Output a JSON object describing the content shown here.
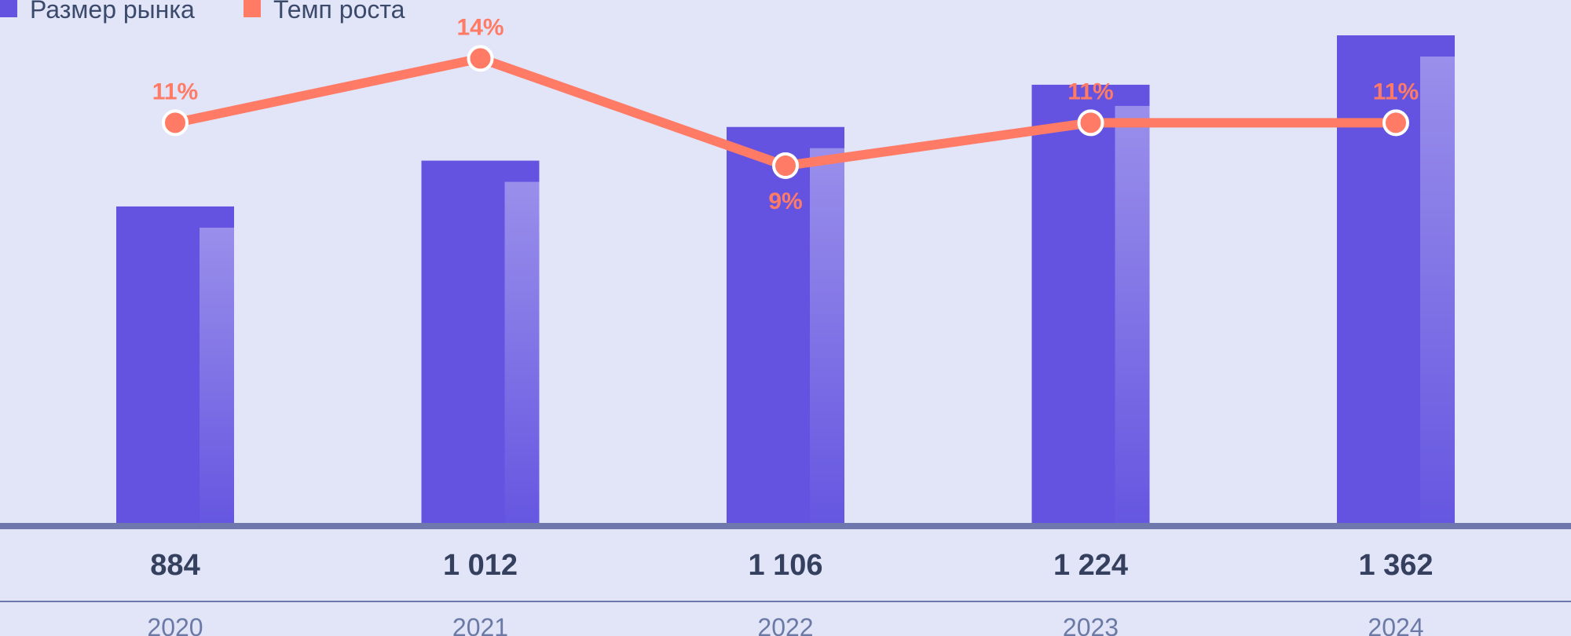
{
  "colors": {
    "background": "#e2e4f8",
    "bar": "#6353e0",
    "bar_highlight": "#9b90ee",
    "line": "#ff7b66",
    "baseline": "#6f78ad",
    "value_text": "#34405e",
    "year_text": "#6b7aa5",
    "legend_text": "#3b4a6b"
  },
  "legend": [
    {
      "label": "Размер рынка",
      "color": "#6353e0"
    },
    {
      "label": "Темп роста",
      "color": "#ff7b66"
    }
  ],
  "chart_data": {
    "type": "bar",
    "categories": [
      "2020",
      "2021",
      "2022",
      "2023",
      "2024"
    ],
    "series": [
      {
        "name": "Размер рынка",
        "type": "bar",
        "values": [
          884,
          1012,
          1106,
          1224,
          1362
        ],
        "labels": [
          "884",
          "1 012",
          "1 106",
          "1 224",
          "1 362"
        ]
      },
      {
        "name": "Темп роста",
        "type": "line",
        "values": [
          11,
          14,
          9,
          11,
          11
        ],
        "labels": [
          "11%",
          "14%",
          "9%",
          "11%",
          "11%"
        ],
        "label_position": [
          "above",
          "above",
          "below",
          "above",
          "above"
        ]
      }
    ],
    "ylim_bar": [
      0,
      1362
    ],
    "grid": false,
    "legend_position": "top-left"
  }
}
